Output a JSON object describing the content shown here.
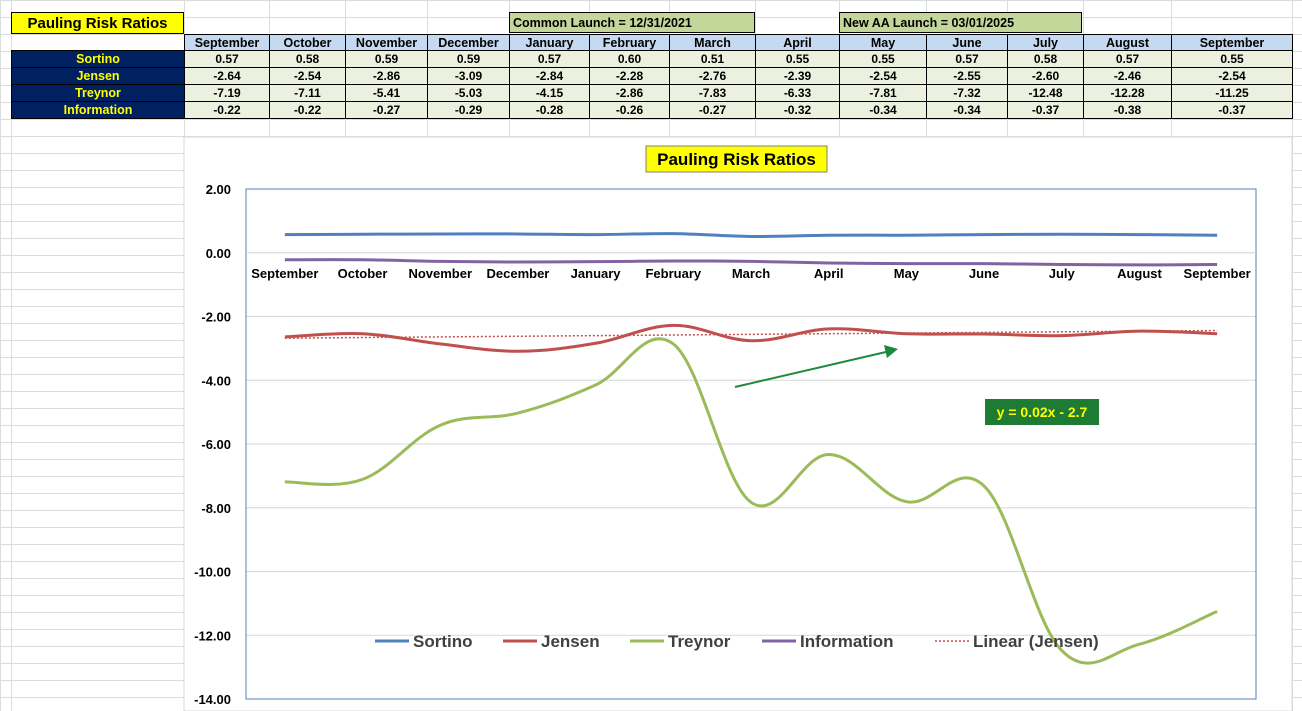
{
  "sheet": {
    "title": "Pauling Risk Ratios",
    "banner_common": "Common Launch = 12/31/2021",
    "banner_new_aa": "New AA Launch = 03/01/2025",
    "months": [
      "September",
      "October",
      "November",
      "December",
      "January",
      "February",
      "March",
      "April",
      "May",
      "June",
      "July",
      "August",
      "September"
    ],
    "rows": [
      {
        "label": "Sortino",
        "values": [
          "0.57",
          "0.58",
          "0.59",
          "0.59",
          "0.57",
          "0.60",
          "0.51",
          "0.55",
          "0.55",
          "0.57",
          "0.58",
          "0.57",
          "0.55"
        ]
      },
      {
        "label": "Jensen",
        "values": [
          "-2.64",
          "-2.54",
          "-2.86",
          "-3.09",
          "-2.84",
          "-2.28",
          "-2.76",
          "-2.39",
          "-2.54",
          "-2.55",
          "-2.60",
          "-2.46",
          "-2.54"
        ]
      },
      {
        "label": "Treynor",
        "values": [
          "-7.19",
          "-7.11",
          "-5.41",
          "-5.03",
          "-4.15",
          "-2.86",
          "-7.83",
          "-6.33",
          "-7.81",
          "-7.32",
          "-12.48",
          "-12.28",
          "-11.25"
        ]
      },
      {
        "label": "Information",
        "values": [
          "-0.22",
          "-0.22",
          "-0.27",
          "-0.29",
          "-0.28",
          "-0.26",
          "-0.27",
          "-0.32",
          "-0.34",
          "-0.34",
          "-0.37",
          "-0.38",
          "-0.37"
        ]
      }
    ],
    "colors": {
      "header_fill": "#c5d9f1",
      "label_fill": "#002060",
      "label_text": "#ffff00",
      "data_fill": "#ebf1de",
      "title_fill": "#ffff00",
      "banner_fill": "#c4d79b"
    }
  },
  "chart_data": {
    "type": "line",
    "title": "Pauling Risk Ratios",
    "categories": [
      "September",
      "October",
      "November",
      "December",
      "January",
      "February",
      "March",
      "April",
      "May",
      "June",
      "July",
      "August",
      "September"
    ],
    "series": [
      {
        "name": "Sortino",
        "color": "#4f81bd",
        "values": [
          0.57,
          0.58,
          0.59,
          0.59,
          0.57,
          0.6,
          0.51,
          0.55,
          0.55,
          0.57,
          0.58,
          0.57,
          0.55
        ]
      },
      {
        "name": "Jensen",
        "color": "#c0504d",
        "values": [
          -2.64,
          -2.54,
          -2.86,
          -3.09,
          -2.84,
          -2.28,
          -2.76,
          -2.39,
          -2.54,
          -2.55,
          -2.6,
          -2.46,
          -2.54
        ]
      },
      {
        "name": "Treynor",
        "color": "#9bbb59",
        "values": [
          -7.19,
          -7.11,
          -5.41,
          -5.03,
          -4.15,
          -2.86,
          -7.83,
          -6.33,
          -7.81,
          -7.32,
          -12.48,
          -12.28,
          -11.25
        ]
      },
      {
        "name": "Information",
        "color": "#8064a2",
        "values": [
          -0.22,
          -0.22,
          -0.27,
          -0.29,
          -0.28,
          -0.26,
          -0.27,
          -0.32,
          -0.34,
          -0.34,
          -0.37,
          -0.38,
          -0.37
        ]
      }
    ],
    "trendline": {
      "name": "Linear (Jensen)",
      "of": "Jensen",
      "color": "#c0504d",
      "style": "dotted",
      "slope": 0.02,
      "intercept": -2.7,
      "equation": "y = 0.02x - 2.7"
    },
    "ylim": [
      -14,
      2
    ],
    "yticks": [
      2,
      0,
      -2,
      -4,
      -6,
      -8,
      -10,
      -12,
      -14
    ],
    "ytick_labels": [
      "2.00",
      "0.00",
      "-2.00",
      "-4.00",
      "-6.00",
      "-8.00",
      "-10.00",
      "-12.00",
      "-14.00"
    ],
    "smooth": true,
    "grid": true,
    "legend": "bottom-inside",
    "annotation": {
      "type": "arrow",
      "color": "#1e8a3e",
      "direction": "up-right"
    }
  }
}
